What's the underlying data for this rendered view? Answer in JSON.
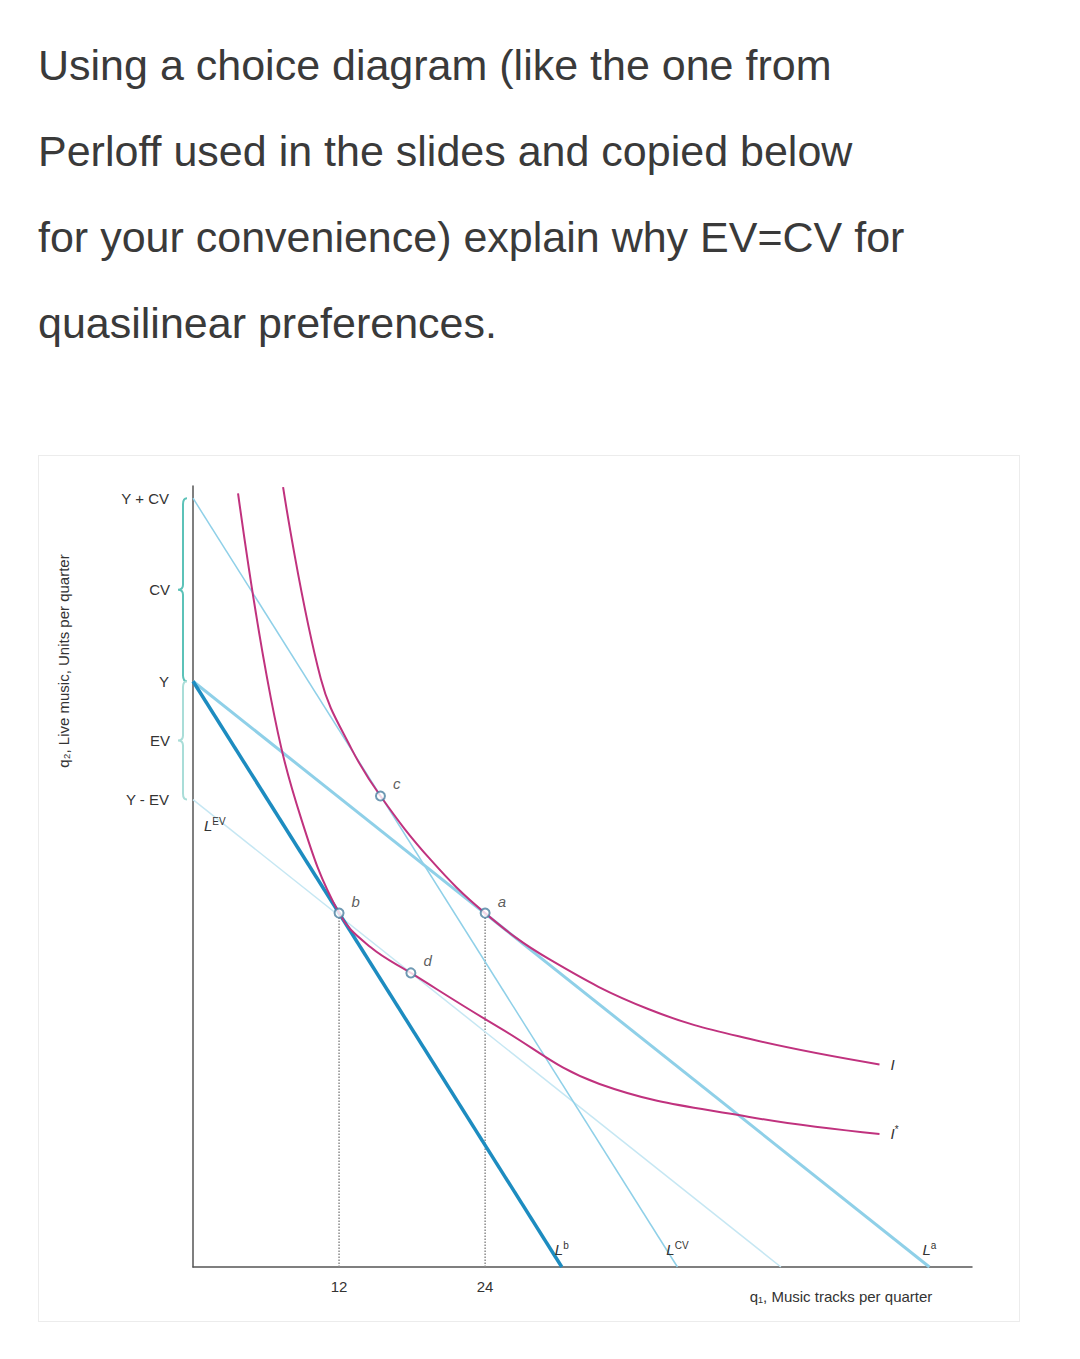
{
  "question": {
    "lines": [
      "Using a choice diagram (like the one from",
      "Perloff used in the slides and copied below",
      "for your convenience) explain why EV=CV for",
      "quasilinear preferences."
    ]
  },
  "chart_data": {
    "type": "line",
    "x_label": "q₁, Music tracks per quarter",
    "y_label": "q₂, Live music, Units per quarter",
    "xlim": [
      0,
      64
    ],
    "xticks": [
      12,
      24
    ],
    "ylim": [
      0,
      64
    ],
    "yticks": [
      {
        "value": 38.3,
        "label": "Y - EV"
      },
      {
        "value": 48,
        "label": "Y"
      },
      {
        "value": 63,
        "label": "Y + CV"
      }
    ],
    "grid": false,
    "braces": [
      {
        "label": "CV",
        "from": 48,
        "to": 63,
        "color": "#5cc2b8"
      },
      {
        "label": "EV",
        "from": 38.3,
        "to": 48,
        "color": "#a9ddd8"
      }
    ],
    "series": [
      {
        "label": "L",
        "sup": "EV",
        "color": "#c6e7f3",
        "line_style": "faint",
        "x": [
          48.3,
          0
        ],
        "values": [
          0,
          38.3
        ]
      },
      {
        "label": "L",
        "sup": "CV",
        "color": "#8fd0e8",
        "line_style": "thin",
        "x": [
          0,
          39.8
        ],
        "values": [
          63,
          0
        ]
      },
      {
        "label": "L",
        "sup": "a",
        "color": "#8fd0e8",
        "line_style": "medium",
        "x": [
          0,
          60.5
        ],
        "values": [
          48,
          0
        ]
      },
      {
        "label": "L",
        "sup": "b",
        "color": "#1d8cc0",
        "line_style": "bold",
        "x": [
          0,
          30.3
        ],
        "values": [
          48,
          0
        ]
      },
      {
        "label": "I",
        "color": "#c0327e",
        "line_style": "solid",
        "x": [
          7.4,
          10.5,
          13.0,
          15.4,
          19.5,
          24,
          29.3,
          37.5,
          45.7,
          56.4
        ],
        "values": [
          63.9,
          48.2,
          42.5,
          38.6,
          33.4,
          29,
          25.2,
          21.1,
          18.7,
          16.6
        ]
      },
      {
        "label": "I",
        "sup": "*",
        "color": "#c0327e",
        "line_style": "solid",
        "x": [
          3.7,
          6.4,
          8.9,
          12,
          14.6,
          17.9,
          25.2,
          33.4,
          45.7,
          56.4
        ],
        "values": [
          63.4,
          46.6,
          36.7,
          29,
          26.2,
          24.1,
          19.6,
          15.0,
          12.3,
          10.9
        ]
      }
    ],
    "guides": [
      {
        "color": "#8a8a8a",
        "line_style": "dotted",
        "x": [
          12,
          12
        ],
        "values": [
          0,
          29
        ]
      },
      {
        "color": "#8a8a8a",
        "line_style": "dotted",
        "x": [
          24,
          24
        ],
        "values": [
          0,
          29
        ]
      }
    ],
    "points": {
      "marker": "hollow",
      "color": "#4a7fa0",
      "labels": [
        "a",
        "b",
        "c",
        "d"
      ],
      "x": [
        24,
        12,
        15.4,
        17.9
      ],
      "values": [
        29,
        29,
        38.6,
        24.1
      ]
    }
  }
}
